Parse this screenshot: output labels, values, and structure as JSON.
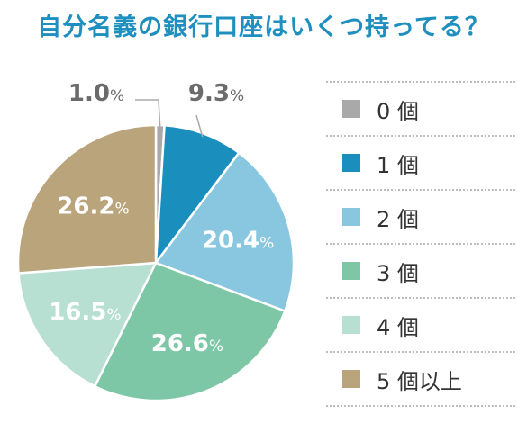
{
  "title": "自分名義の銀行口座はいくつ持ってる？",
  "chart_data": {
    "type": "pie",
    "categories": [
      "0 個",
      "1 個",
      "2 個",
      "3 個",
      "4 個",
      "5 個以上"
    ],
    "values": [
      1.0,
      9.3,
      20.4,
      26.6,
      16.5,
      26.2
    ],
    "value_texts": [
      "1.0",
      "9.3",
      "20.4",
      "26.6",
      "16.5",
      "26.2"
    ],
    "unit": "%",
    "colors": [
      "#a9a9a9",
      "#1a8fbd",
      "#89c7e0",
      "#7dc7a6",
      "#b8e0d2",
      "#baa47c"
    ],
    "label_colors": [
      "#6b6b6b",
      "#6b6b6b",
      "#ffffff",
      "#ffffff",
      "#ffffff",
      "#ffffff"
    ],
    "legend_position": "right"
  }
}
